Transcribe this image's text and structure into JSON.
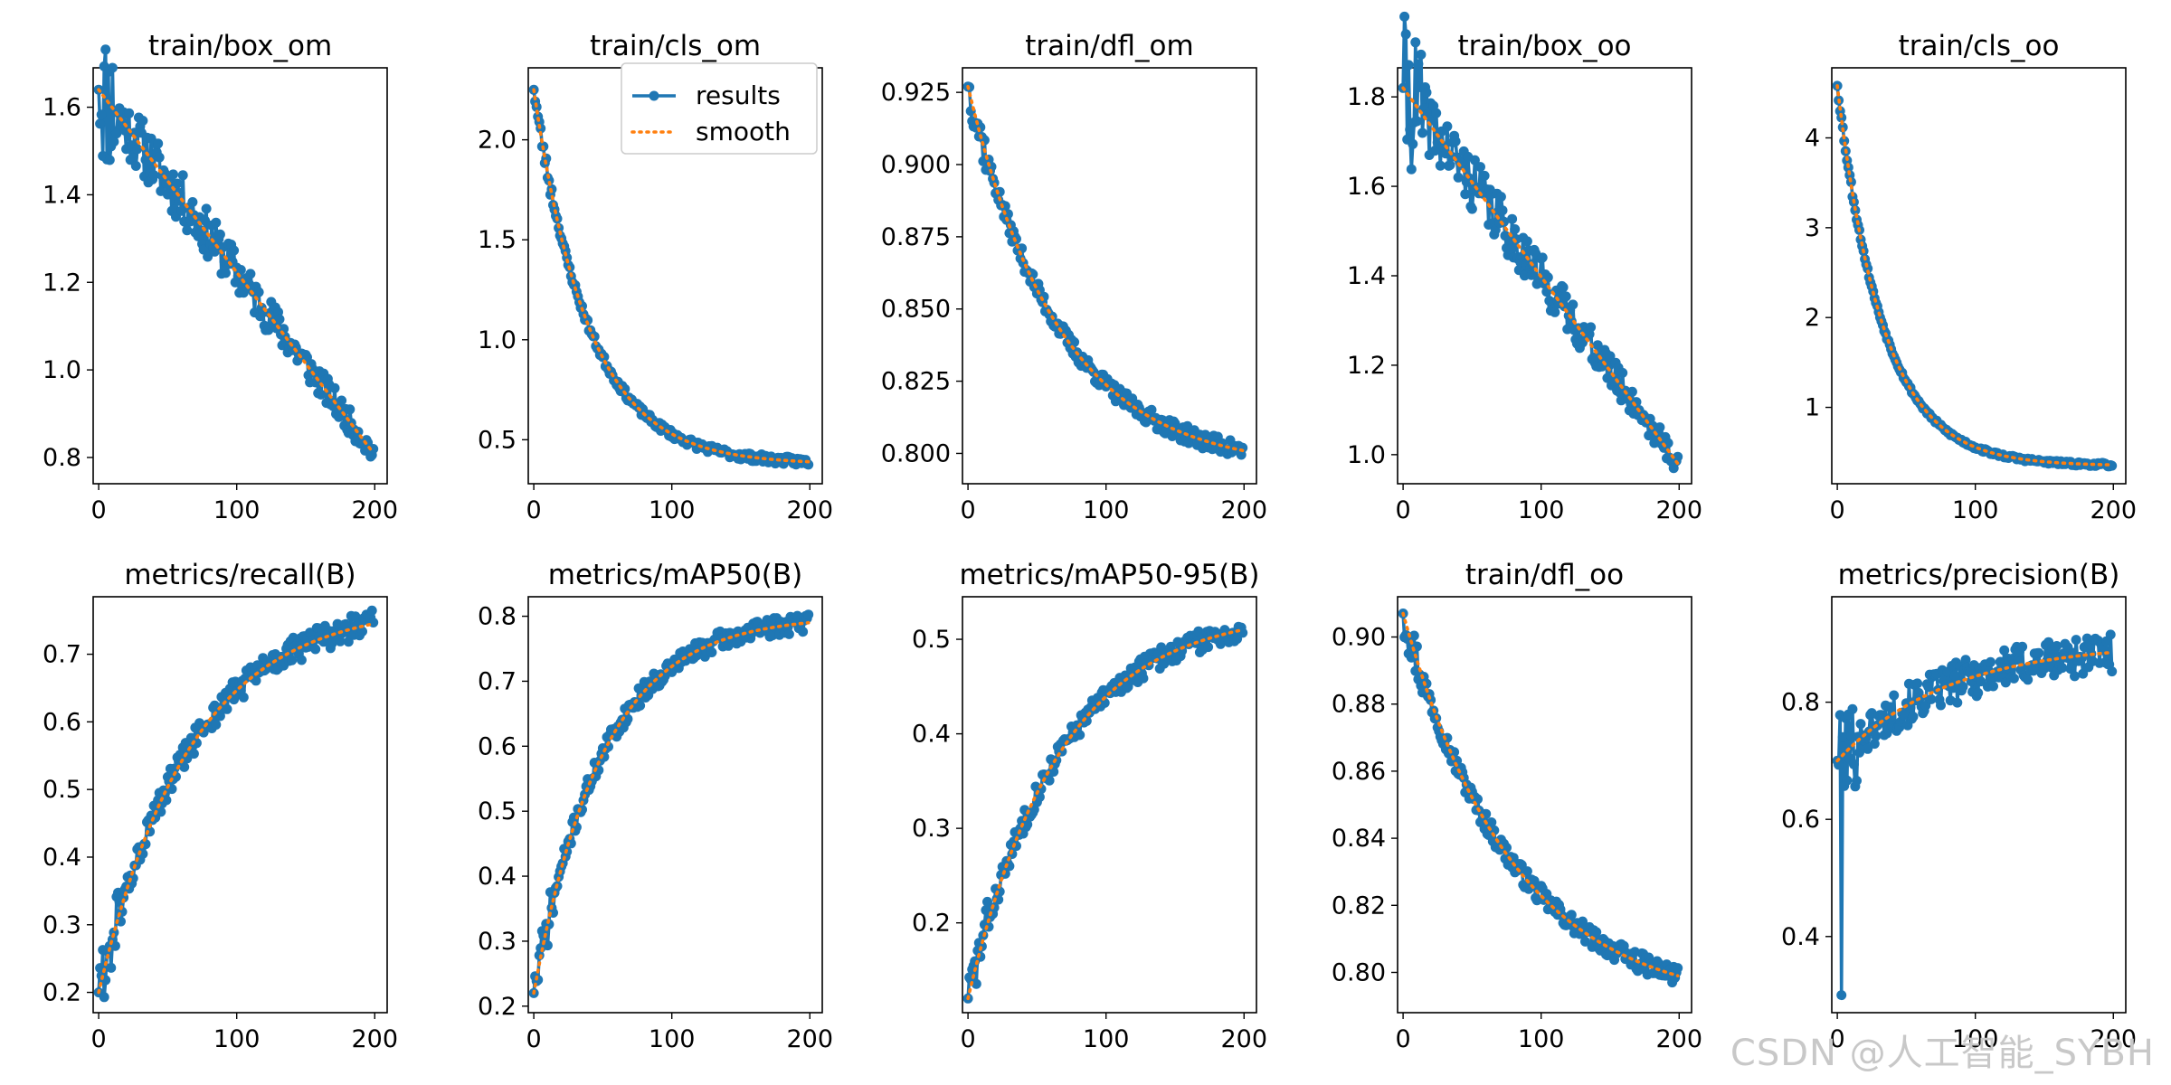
{
  "watermark": "CSDN @人工智能_SYBH",
  "colors": {
    "results": "#1f77b4",
    "smooth": "#ff7f0e",
    "axis": "#000000"
  },
  "chart_data": [
    {
      "type": "line",
      "title": "train/box_om",
      "xlim": [
        -4,
        209
      ],
      "ylim": [
        0.74,
        1.69
      ],
      "xticks": [
        0,
        100,
        200
      ],
      "yticks": [
        0.8,
        1.0,
        1.2,
        1.4,
        1.6
      ],
      "ytick_fmt": 1,
      "start": 1.64,
      "end": 0.81,
      "curve": 0.85,
      "noise": 0.025,
      "spike_at": 0,
      "seed": 11,
      "series": [
        {
          "name": "results"
        },
        {
          "name": "smooth"
        }
      ]
    },
    {
      "type": "line",
      "title": "train/cls_om",
      "xlim": [
        -4,
        209
      ],
      "ylim": [
        0.28,
        2.36
      ],
      "xticks": [
        0,
        100,
        200
      ],
      "yticks": [
        0.5,
        1.0,
        1.5,
        2.0
      ],
      "ytick_fmt": 1,
      "start": 2.25,
      "end": 0.39,
      "curve": 5,
      "noise": 0.02,
      "spike_at": 0,
      "seed": 23,
      "series": [
        {
          "name": "results"
        },
        {
          "name": "smooth"
        }
      ],
      "legend": {
        "position": "top-right",
        "entries": [
          "results",
          "smooth"
        ]
      }
    },
    {
      "type": "line",
      "title": "train/dfl_om",
      "xlim": [
        -4,
        209
      ],
      "ylim": [
        0.7895,
        0.9335
      ],
      "xticks": [
        0,
        100,
        200
      ],
      "yticks": [
        0.8,
        0.825,
        0.85,
        0.875,
        0.9,
        0.925
      ],
      "ytick_fmt": 3,
      "start": 0.927,
      "end": 0.801,
      "curve": 3,
      "noise": 0.003,
      "spike_at": 0,
      "seed": 37,
      "series": [
        {
          "name": "results"
        },
        {
          "name": "smooth"
        }
      ]
    },
    {
      "type": "line",
      "title": "train/box_oo",
      "xlim": [
        -4,
        209
      ],
      "ylim": [
        0.935,
        1.865
      ],
      "xticks": [
        0,
        100,
        200
      ],
      "yticks": [
        1.0,
        1.2,
        1.4,
        1.6,
        1.8
      ],
      "ytick_fmt": 1,
      "start": 1.82,
      "end": 0.98,
      "curve": 1.2,
      "noise": 0.025,
      "spike_at": 0,
      "seed": 41,
      "series": [
        {
          "name": "results"
        },
        {
          "name": "smooth"
        }
      ]
    },
    {
      "type": "line",
      "title": "train/cls_oo",
      "xlim": [
        -4,
        209
      ],
      "ylim": [
        0.15,
        4.78
      ],
      "xticks": [
        0,
        100,
        200
      ],
      "yticks": [
        1,
        2,
        3,
        4
      ],
      "ytick_fmt": 0,
      "start": 4.58,
      "end": 0.36,
      "curve": 6,
      "noise": 0.02,
      "spike_at": 0,
      "seed": 53,
      "series": [
        {
          "name": "results"
        },
        {
          "name": "smooth"
        }
      ]
    },
    {
      "type": "line",
      "title": "metrics/recall(B)",
      "xlim": [
        -4,
        209
      ],
      "ylim": [
        0.17,
        0.785
      ],
      "xticks": [
        0,
        100,
        200
      ],
      "yticks": [
        0.2,
        0.3,
        0.4,
        0.5,
        0.6,
        0.7
      ],
      "ytick_fmt": 1,
      "start": 0.2,
      "end": 0.745,
      "curve": 3,
      "noise": 0.02,
      "spike_at": 0,
      "seed": 61,
      "series": [
        {
          "name": "results"
        },
        {
          "name": "smooth"
        }
      ]
    },
    {
      "type": "line",
      "title": "metrics/mAP50(B)",
      "xlim": [
        -4,
        209
      ],
      "ylim": [
        0.19,
        0.83
      ],
      "xticks": [
        0,
        100,
        200
      ],
      "yticks": [
        0.2,
        0.3,
        0.4,
        0.5,
        0.6,
        0.7,
        0.8
      ],
      "ytick_fmt": 1,
      "start": 0.22,
      "end": 0.79,
      "curve": 4,
      "noise": 0.015,
      "spike_at": 0,
      "seed": 71,
      "series": [
        {
          "name": "results"
        },
        {
          "name": "smooth"
        }
      ]
    },
    {
      "type": "line",
      "title": "metrics/mAP50-95(B)",
      "xlim": [
        -4,
        209
      ],
      "ylim": [
        0.105,
        0.545
      ],
      "xticks": [
        0,
        100,
        200
      ],
      "yticks": [
        0.2,
        0.3,
        0.4,
        0.5
      ],
      "ytick_fmt": 1,
      "start": 0.12,
      "end": 0.51,
      "curve": 3,
      "noise": 0.012,
      "spike_at": 0,
      "seed": 83,
      "series": [
        {
          "name": "results"
        },
        {
          "name": "smooth"
        }
      ]
    },
    {
      "type": "line",
      "title": "train/dfl_oo",
      "xlim": [
        -4,
        209
      ],
      "ylim": [
        0.788,
        0.912
      ],
      "xticks": [
        0,
        100,
        200
      ],
      "yticks": [
        0.8,
        0.82,
        0.84,
        0.86,
        0.88,
        0.9
      ],
      "ytick_fmt": 2,
      "start": 0.907,
      "end": 0.799,
      "curve": 2.5,
      "noise": 0.003,
      "spike_at": 0,
      "seed": 97,
      "series": [
        {
          "name": "results"
        },
        {
          "name": "smooth"
        }
      ]
    },
    {
      "type": "line",
      "title": "metrics/precision(B)",
      "xlim": [
        -4,
        209
      ],
      "ylim": [
        0.27,
        0.98
      ],
      "xticks": [
        0,
        100,
        200
      ],
      "yticks": [
        0.4,
        0.6,
        0.8
      ],
      "ytick_fmt": 1,
      "start": 0.7,
      "end": 0.885,
      "curve": 2.5,
      "noise": 0.035,
      "spike_at": 3,
      "spike_val": 0.3,
      "seed": 101,
      "series": [
        {
          "name": "results"
        },
        {
          "name": "smooth"
        }
      ]
    }
  ]
}
